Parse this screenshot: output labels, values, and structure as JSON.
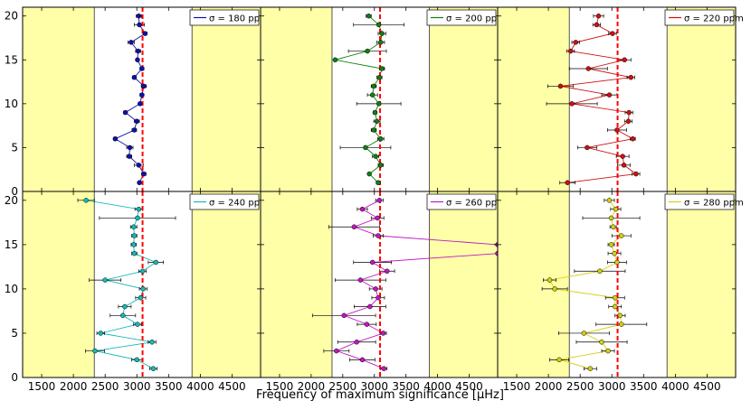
{
  "figure": {
    "xlabel": "Frequency of maximum significance [μHz]",
    "background_color": "#ffffff",
    "shade_color": "#ffffa8",
    "reference_line_color": "#ff0000",
    "reference_line_x": 3090,
    "shaded_ranges": [
      [
        1200,
        2330
      ],
      [
        3870,
        4950
      ]
    ],
    "xlim": [
      1200,
      4950
    ],
    "ylim": [
      0,
      21
    ],
    "xticks": [
      1500,
      2000,
      2500,
      3000,
      3500,
      4000,
      4500
    ],
    "yticks": [
      0,
      5,
      10,
      15,
      20
    ]
  },
  "chart_data": [
    {
      "type": "scatter",
      "panel": "top-left",
      "legend": "σ = 180 ppm",
      "legend_placement": "top-right",
      "color": "#1010b0",
      "y": [
        1,
        2,
        3,
        4,
        5,
        6,
        7,
        8,
        9,
        10,
        11,
        12,
        13,
        14,
        15,
        16,
        17,
        18,
        19,
        20
      ],
      "x": [
        3040,
        3110,
        3030,
        2880,
        2890,
        2660,
        2960,
        3000,
        2820,
        3050,
        3080,
        3110,
        2960,
        3080,
        3010,
        3020,
        2910,
        3130,
        3040,
        3030
      ],
      "err": [
        0,
        35,
        70,
        40,
        50,
        30,
        35,
        40,
        30,
        20,
        30,
        40,
        30,
        30,
        20,
        40,
        50,
        30,
        80,
        40
      ],
      "xlim": [
        1200,
        4950
      ],
      "ylim": [
        0,
        21
      ],
      "grid": false
    },
    {
      "type": "scatter",
      "panel": "top-middle",
      "legend": "σ = 200 ppm",
      "legend_placement": "top-right",
      "color": "#108010",
      "y": [
        1,
        2,
        3,
        4,
        5,
        6,
        7,
        8,
        9,
        10,
        11,
        12,
        13,
        14,
        15,
        16,
        17,
        18,
        19,
        20
      ],
      "x": [
        3060,
        2920,
        3100,
        3020,
        2860,
        3100,
        2990,
        3040,
        3010,
        3070,
        2970,
        2990,
        3080,
        3120,
        2380,
        2890,
        3100,
        3120,
        3070,
        2910
      ],
      "err": [
        30,
        20,
        40,
        50,
        400,
        50,
        40,
        50,
        30,
        350,
        80,
        40,
        40,
        40,
        20,
        300,
        60,
        60,
        400,
        40
      ],
      "xlim": [
        1200,
        4950
      ],
      "ylim": [
        0,
        21
      ],
      "grid": false
    },
    {
      "type": "scatter",
      "panel": "top-right",
      "legend": "σ = 220 ppm",
      "legend_placement": "top-right",
      "color": "#d01010",
      "y": [
        1,
        2,
        3,
        4,
        5,
        6,
        7,
        8,
        9,
        10,
        11,
        12,
        13,
        14,
        15,
        16,
        17,
        18,
        19,
        20
      ],
      "x": [
        2300,
        3380,
        3190,
        3170,
        2610,
        3330,
        3080,
        3260,
        3270,
        2370,
        2960,
        2190,
        3300,
        2630,
        3200,
        2350,
        2430,
        3010,
        2760,
        2790
      ],
      "err": [
        120,
        60,
        100,
        100,
        150,
        40,
        150,
        60,
        60,
        400,
        120,
        200,
        60,
        300,
        100,
        60,
        60,
        60,
        60,
        80
      ],
      "xlim": [
        1200,
        4950
      ],
      "ylim": [
        0,
        21
      ],
      "grid": false
    },
    {
      "type": "scatter",
      "panel": "bottom-left",
      "legend": "σ = 240 ppm",
      "legend_placement": "top-right",
      "color": "#18b8b8",
      "y": [
        1,
        2,
        3,
        4,
        5,
        6,
        7,
        8,
        9,
        10,
        11,
        12,
        13,
        14,
        15,
        16,
        17,
        18,
        19,
        20
      ],
      "x": [
        3260,
        3000,
        2340,
        3240,
        2430,
        3010,
        2780,
        2810,
        3060,
        3100,
        2500,
        3090,
        3300,
        2960,
        2950,
        2960,
        2950,
        3010,
        3030,
        2200
      ],
      "err": [
        60,
        80,
        150,
        60,
        60,
        60,
        200,
        100,
        80,
        60,
        250,
        60,
        120,
        40,
        40,
        40,
        50,
        600,
        60,
        130
      ],
      "xlim": [
        1200,
        4950
      ],
      "ylim": [
        0,
        21
      ],
      "grid": false
    },
    {
      "type": "scatter",
      "panel": "bottom-middle",
      "legend": "σ = 260 ppm",
      "legend_placement": "top-right",
      "color": "#c018c0",
      "y": [
        1,
        2,
        3,
        4,
        5,
        6,
        7,
        8,
        9,
        10,
        11,
        12,
        13,
        14,
        15,
        16,
        17,
        18,
        19,
        20
      ],
      "x": [
        3150,
        2810,
        2400,
        2720,
        3140,
        2880,
        2520,
        2930,
        3060,
        3020,
        2780,
        3200,
        2970,
        4950,
        4950,
        3060,
        2680,
        3050,
        2810,
        3080
      ],
      "err": [
        50,
        200,
        200,
        300,
        50,
        150,
        500,
        250,
        100,
        100,
        400,
        120,
        300,
        0,
        0,
        80,
        400,
        100,
        80,
        60
      ],
      "xlim": [
        1200,
        4950
      ],
      "ylim": [
        0,
        21
      ],
      "grid": false
    },
    {
      "type": "scatter",
      "panel": "bottom-right",
      "legend": "σ = 280 ppm",
      "legend_placement": "top-right",
      "color": "#d4d010",
      "y": [
        1,
        2,
        3,
        4,
        5,
        6,
        7,
        8,
        9,
        10,
        11,
        12,
        13,
        14,
        15,
        16,
        17,
        18,
        19,
        20
      ],
      "x": [
        2660,
        2170,
        2940,
        2840,
        2560,
        3150,
        3130,
        3050,
        3050,
        2100,
        2020,
        2810,
        3080,
        3040,
        2990,
        3150,
        3020,
        2990,
        3060,
        2960
      ],
      "err": [
        100,
        150,
        100,
        400,
        400,
        400,
        80,
        100,
        150,
        200,
        100,
        400,
        150,
        100,
        50,
        150,
        50,
        450,
        80,
        80
      ],
      "xlim": [
        1200,
        4950
      ],
      "ylim": [
        0,
        21
      ],
      "grid": false
    }
  ]
}
